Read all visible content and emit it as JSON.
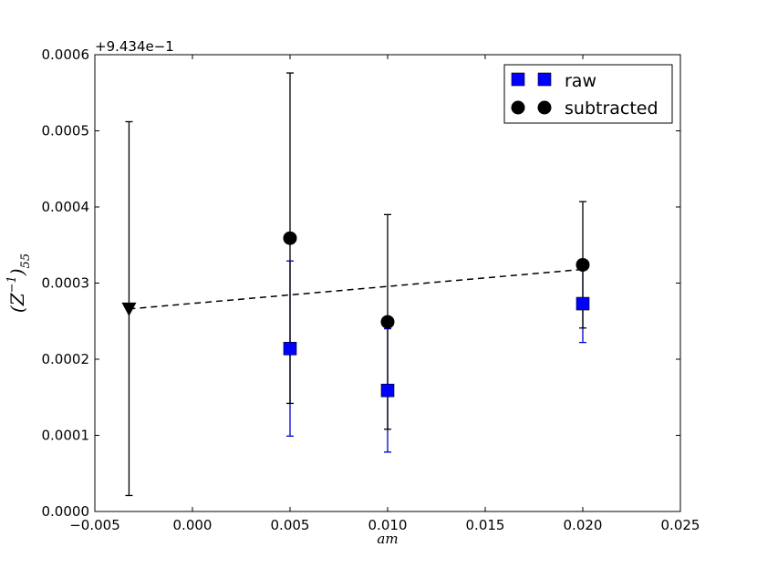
{
  "chart_data": {
    "type": "scatter",
    "xlabel": "am",
    "ylabel_base": "(Z",
    "ylabel_sup": "−1",
    "ylabel_close": ")",
    "ylabel_sub": "55",
    "y_offset_label": "+9.434e−1",
    "y_offset": 0.9434,
    "xlim": [
      -0.005,
      0.025
    ],
    "ylim": [
      0.0,
      0.0006
    ],
    "x_ticks": [
      -0.005,
      0.0,
      0.005,
      0.01,
      0.015,
      0.02,
      0.025
    ],
    "x_tick_labels": [
      "−0.005",
      "0.000",
      "0.005",
      "0.010",
      "0.015",
      "0.020",
      "0.025"
    ],
    "y_ticks": [
      0.0,
      0.0001,
      0.0002,
      0.0003,
      0.0004,
      0.0005,
      0.0006
    ],
    "y_tick_labels": [
      "0.0000",
      "0.0001",
      "0.0002",
      "0.0003",
      "0.0004",
      "0.0005",
      "0.0006"
    ],
    "grid": false,
    "legend_position": "top-right",
    "series": [
      {
        "name": "raw",
        "marker": "square",
        "color": "#0000ff",
        "errorbar_color": "#0000cc",
        "points": [
          {
            "x": 0.005,
            "y": 0.000214,
            "err_low": 0.000115,
            "err_high": 0.000115
          },
          {
            "x": 0.01,
            "y": 0.000159,
            "err_low": 8.1e-05,
            "err_high": 8.1e-05
          },
          {
            "x": 0.02,
            "y": 0.000273,
            "err_low": 5.1e-05,
            "err_high": 5.1e-05
          }
        ]
      },
      {
        "name": "subtracted",
        "marker": "circle",
        "color": "#000000",
        "errorbar_color": "#000000",
        "points": [
          {
            "x": 0.005,
            "y": 0.000359,
            "err_low": 0.000217,
            "err_high": 0.000217
          },
          {
            "x": 0.01,
            "y": 0.000249,
            "err_low": 0.000141,
            "err_high": 0.000141
          },
          {
            "x": 0.02,
            "y": 0.000324,
            "err_low": 8.3e-05,
            "err_high": 8.3e-05
          }
        ]
      }
    ],
    "extrapolated_point": {
      "x": -0.00325,
      "y": 0.000266,
      "err_low": 0.000245,
      "err_high": 0.000246,
      "marker": "triangle-down",
      "color": "#000000"
    },
    "fit_line": {
      "x": [
        -0.00325,
        0.02
      ],
      "y": [
        0.000266,
        0.000318
      ],
      "style": "dashed",
      "color": "#000000"
    }
  }
}
